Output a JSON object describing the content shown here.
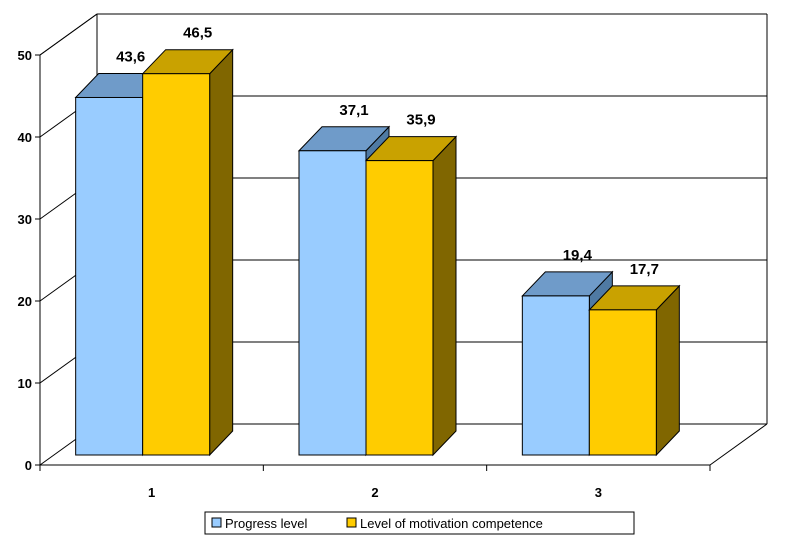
{
  "chart_data": {
    "type": "bar",
    "categories": [
      "1",
      "2",
      "3"
    ],
    "series": [
      {
        "name": "Progress level",
        "values": [
          43.6,
          37.1,
          19.4
        ],
        "labels": [
          "43,6",
          "37,1",
          "19,4"
        ]
      },
      {
        "name": "Level of motivation competence",
        "values": [
          46.5,
          35.9,
          17.7
        ],
        "labels": [
          "46,5",
          "35,9",
          "17,7"
        ]
      }
    ],
    "yticks": [
      "0",
      "10",
      "20",
      "30",
      "40",
      "50"
    ],
    "ylim": [
      0,
      50
    ],
    "grid": true,
    "legend": "bottom-center",
    "colors": {
      "series1_front": "#99ccff",
      "series1_top": "#6f9bc9",
      "series1_side": "#4f7aa3",
      "series2_front": "#ffcc00",
      "series2_top": "#c9a200",
      "series2_side": "#806600"
    }
  }
}
